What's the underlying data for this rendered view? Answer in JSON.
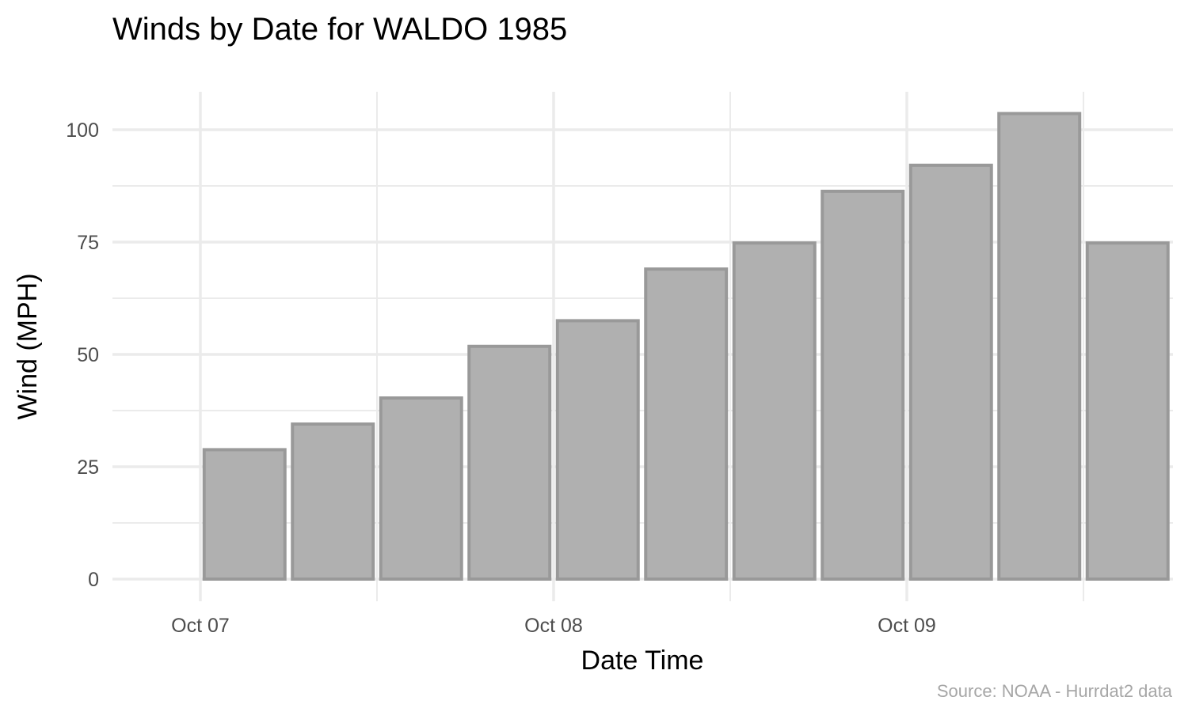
{
  "chart_data": {
    "type": "bar",
    "title": "Winds by Date for WALDO 1985",
    "xlabel": "Date Time",
    "ylabel": "Wind (MPH)",
    "caption": "Source: NOAA - Hurrdat2 data",
    "x": [
      "1985-10-07 00:00",
      "1985-10-07 06:00",
      "1985-10-07 12:00",
      "1985-10-07 18:00",
      "1985-10-08 00:00",
      "1985-10-08 06:00",
      "1985-10-08 12:00",
      "1985-10-08 18:00",
      "1985-10-09 00:00",
      "1985-10-09 06:00",
      "1985-10-09 12:00"
    ],
    "values": [
      28.8,
      34.5,
      40.3,
      51.8,
      57.5,
      69.0,
      74.8,
      86.3,
      92.1,
      103.6,
      74.8
    ],
    "x_ticks": [
      "Oct 07",
      "Oct 08",
      "Oct 09"
    ],
    "y_ticks": [
      0,
      25,
      50,
      75,
      100
    ],
    "ylim": [
      0,
      108
    ],
    "grid": true,
    "legend": "none",
    "colors": {
      "bar_fill": "#b0b0b0",
      "bar_outline": "#999999",
      "grid": "#ebebeb"
    }
  }
}
